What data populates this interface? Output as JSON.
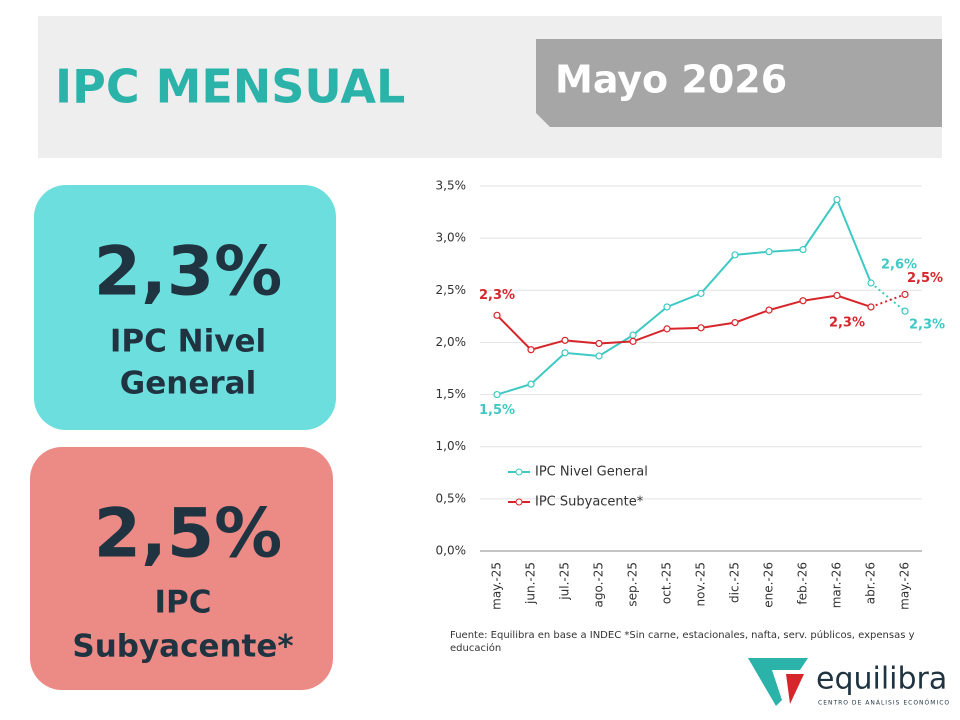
{
  "header": {
    "title": "IPC MENSUAL",
    "period": "Mayo 2026"
  },
  "cards": [
    {
      "value": "2,3%",
      "label_lines": [
        "IPC Nivel",
        "General"
      ]
    },
    {
      "value": "2,5%",
      "label_lines": [
        "IPC",
        "Subyacente*"
      ]
    }
  ],
  "chart_data": {
    "type": "line",
    "categories": [
      "may.-25",
      "jun.-25",
      "jul.-25",
      "ago.-25",
      "sep.-25",
      "oct.-25",
      "nov.-25",
      "dic.-25",
      "ene.-26",
      "feb.-26",
      "mar.-26",
      "abr.-26",
      "may.-26"
    ],
    "series": [
      {
        "name": "IPC Nivel General",
        "color": "#3ec9c4",
        "values": [
          1.5,
          1.6,
          1.9,
          1.87,
          2.07,
          2.34,
          2.47,
          2.84,
          2.87,
          2.89,
          3.37,
          2.57,
          2.3
        ],
        "value_labels": [
          "1,5%",
          null,
          null,
          null,
          null,
          null,
          null,
          null,
          null,
          null,
          null,
          "2,6%",
          "2,3%"
        ]
      },
      {
        "name": "IPC Subyacente*",
        "color": "#d7262b",
        "values": [
          2.26,
          1.93,
          2.02,
          1.99,
          2.01,
          2.13,
          2.14,
          2.19,
          2.31,
          2.4,
          2.45,
          2.34,
          2.46
        ],
        "value_labels": [
          "2,3%",
          null,
          null,
          null,
          null,
          null,
          null,
          null,
          null,
          null,
          null,
          "2,3%",
          "2,5%"
        ]
      }
    ],
    "ylim": [
      0,
      3.5
    ],
    "yticks": [
      {
        "value": 0,
        "label": "0,0%"
      },
      {
        "value": 0.5,
        "label": "0,5%"
      },
      {
        "value": 1,
        "label": "1,0%"
      },
      {
        "value": 1.5,
        "label": "1,5%"
      },
      {
        "value": 2,
        "label": "2,0%"
      },
      {
        "value": 2.5,
        "label": "2,5%"
      },
      {
        "value": 3,
        "label": "3,0%"
      },
      {
        "value": 3.5,
        "label": "3,5%"
      }
    ],
    "grid": true,
    "legend": "lower left",
    "dotted_last_segment": true
  },
  "source_lines": [
    "Fuente: Equilibra en base a INDEC *Sin carne, estacionales, nafta, serv. públicos, expensas y",
    "educación"
  ],
  "logo": {
    "name": "equilibra",
    "tagline": "CENTRO DE ANÁLISIS ECONÓMICO"
  }
}
